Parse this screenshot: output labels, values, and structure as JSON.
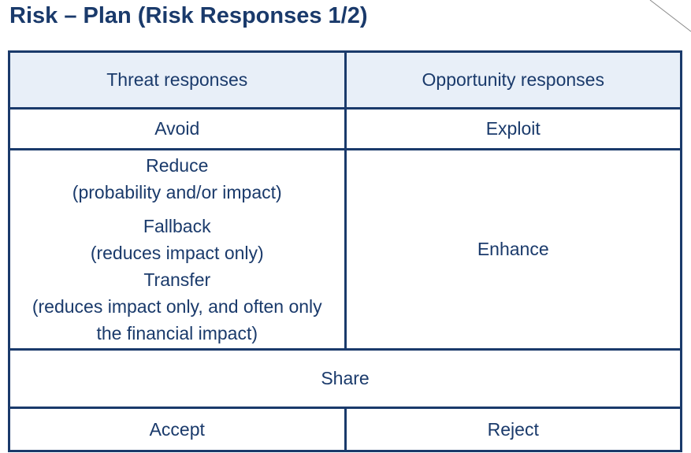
{
  "title": "Risk – Plan (Risk Responses 1/2)",
  "table": {
    "header": {
      "threat": "Threat responses",
      "opportunity": "Opportunity responses"
    },
    "row_avoid": {
      "threat": "Avoid",
      "opportunity": "Exploit"
    },
    "row_reduce": {
      "threat_items": [
        {
          "name": "Reduce",
          "detail": "(probability and/or impact)"
        },
        {
          "name": "Fallback",
          "detail": "(reduces impact only)"
        },
        {
          "name": "Transfer",
          "detail_line1": "(reduces impact only, and often only",
          "detail_line2": "the financial impact)"
        }
      ],
      "opportunity": "Enhance"
    },
    "row_share": {
      "both": "Share"
    },
    "row_accept": {
      "threat": "Accept",
      "opportunity": "Reject"
    }
  },
  "colors": {
    "text": "#1a3a6b",
    "border": "#1a3a6b",
    "header_bg": "#e8eff8"
  }
}
